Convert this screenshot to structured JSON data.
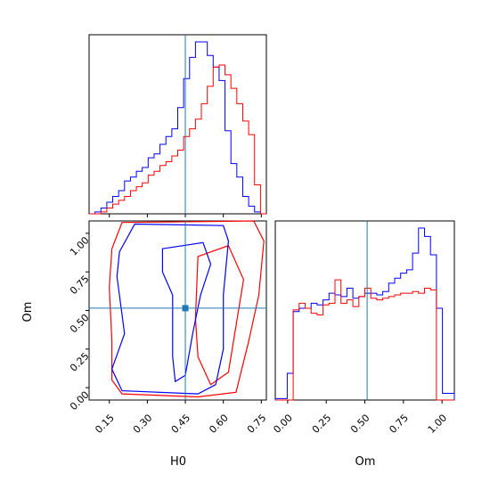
{
  "chart_data": {
    "type": "corner",
    "parameters": [
      "H0",
      "Om"
    ],
    "truths": {
      "H0": 0.45,
      "Om": 0.515
    },
    "colors": {
      "series_a": "#0000ff",
      "series_b": "#ff0000",
      "truth": "#1f77b4"
    },
    "series": [
      {
        "color": "blue"
      },
      {
        "color": "red"
      }
    ],
    "h0_histogram": {
      "xlim": [
        0.07,
        0.77
      ],
      "bin_edges": [
        0.07,
        0.0933,
        0.1167,
        0.14,
        0.1633,
        0.1867,
        0.21,
        0.2333,
        0.2567,
        0.28,
        0.3033,
        0.3267,
        0.35,
        0.3733,
        0.3967,
        0.42,
        0.4433,
        0.4667,
        0.49,
        0.5133,
        0.5367,
        0.56,
        0.5833,
        0.6067,
        0.63,
        0.6533,
        0.6767,
        0.7,
        0.7233,
        0.7467,
        0.77
      ],
      "blue_counts": [
        0,
        1,
        3,
        6,
        9,
        12,
        17,
        19,
        22,
        24,
        29,
        31,
        36,
        40,
        44,
        55,
        70,
        81,
        89,
        89,
        82,
        76,
        69,
        43,
        26,
        19,
        9,
        4,
        1,
        0
      ],
      "red_counts": [
        0,
        0,
        1,
        3,
        5,
        7,
        9,
        12,
        14,
        16,
        20,
        22,
        25,
        27,
        30,
        33,
        40,
        44,
        49,
        57,
        66,
        76,
        77,
        72,
        65,
        57,
        48,
        41,
        15,
        0
      ]
    },
    "om_histogram": {
      "xlim": [
        -0.08,
        1.08
      ],
      "bin_edges": [
        -0.08,
        -0.0413,
        -0.0027,
        0.036,
        0.0747,
        0.1133,
        0.152,
        0.1907,
        0.2293,
        0.268,
        0.3067,
        0.3453,
        0.384,
        0.4227,
        0.4613,
        0.5,
        0.5387,
        0.5773,
        0.616,
        0.6547,
        0.6933,
        0.732,
        0.7707,
        0.8093,
        0.848,
        0.8867,
        0.9253,
        0.964,
        1.0027,
        1.0413,
        1.08
      ],
      "blue_counts": [
        0.9,
        0.9,
        16,
        53,
        55,
        55,
        58,
        57,
        60,
        64,
        63,
        62,
        67,
        61,
        62,
        64,
        64,
        63,
        65,
        70,
        73,
        76,
        78,
        88,
        103,
        98,
        87,
        55,
        4,
        4
      ],
      "red_counts": [
        0,
        0,
        0,
        54,
        58,
        55,
        52,
        51,
        57,
        58,
        72,
        58,
        60,
        56,
        62,
        67,
        61,
        60,
        61,
        62,
        63,
        64,
        64,
        65,
        64,
        67,
        66,
        0,
        0,
        0
      ]
    },
    "h0_ticks": [
      0.15,
      0.3,
      0.45,
      0.6,
      0.75
    ],
    "om_ticks": [
      0.0,
      0.25,
      0.5,
      0.75,
      1.0
    ],
    "h0_om_contours": {
      "xlim": [
        0.07,
        0.77
      ],
      "ylim": [
        -0.08,
        1.08
      ],
      "blue_outer": [
        [
          0.25,
          1.06
        ],
        [
          0.6,
          1.05
        ],
        [
          0.62,
          0.95
        ],
        [
          0.6,
          0.6
        ],
        [
          0.6,
          0.25
        ],
        [
          0.57,
          0.02
        ],
        [
          0.5,
          -0.04
        ],
        [
          0.2,
          -0.02
        ],
        [
          0.16,
          0.12
        ],
        [
          0.21,
          0.35
        ],
        [
          0.18,
          0.72
        ],
        [
          0.19,
          0.88
        ],
        [
          0.25,
          1.06
        ]
      ],
      "blue_inner": [
        [
          0.36,
          0.9
        ],
        [
          0.52,
          0.94
        ],
        [
          0.55,
          0.8
        ],
        [
          0.51,
          0.6
        ],
        [
          0.48,
          0.36
        ],
        [
          0.45,
          0.08
        ],
        [
          0.41,
          0.04
        ],
        [
          0.4,
          0.2
        ],
        [
          0.4,
          0.6
        ],
        [
          0.36,
          0.75
        ],
        [
          0.36,
          0.9
        ]
      ],
      "red_outer": [
        [
          0.2,
          1.07
        ],
        [
          0.72,
          1.08
        ],
        [
          0.76,
          0.95
        ],
        [
          0.74,
          0.6
        ],
        [
          0.7,
          0.3
        ],
        [
          0.65,
          -0.03
        ],
        [
          0.5,
          -0.06
        ],
        [
          0.2,
          -0.04
        ],
        [
          0.16,
          0.05
        ],
        [
          0.16,
          0.3
        ],
        [
          0.15,
          0.65
        ],
        [
          0.16,
          0.9
        ],
        [
          0.2,
          1.07
        ]
      ],
      "red_inner": [
        [
          0.5,
          0.85
        ],
        [
          0.62,
          0.92
        ],
        [
          0.68,
          0.7
        ],
        [
          0.65,
          0.4
        ],
        [
          0.62,
          0.1
        ],
        [
          0.55,
          0.02
        ],
        [
          0.5,
          0.2
        ],
        [
          0.49,
          0.45
        ],
        [
          0.5,
          0.85
        ]
      ]
    },
    "axis_labels": {
      "x_left": "H0",
      "x_right": "Om",
      "y_left": "Om"
    }
  }
}
